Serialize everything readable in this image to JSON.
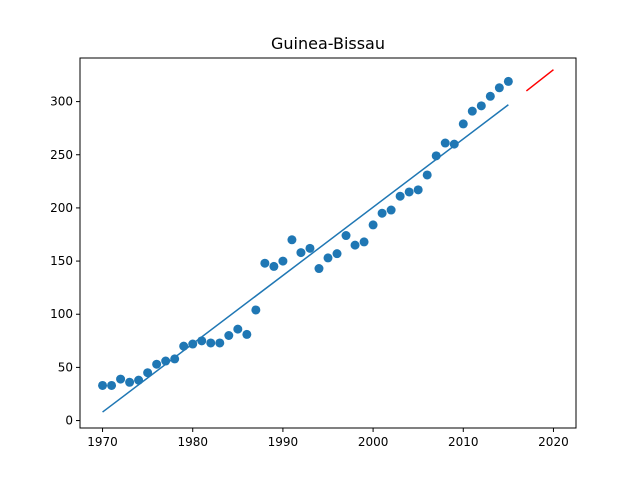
{
  "chart_data": {
    "type": "scatter",
    "title": "Guinea-Bissau",
    "xlabel": "",
    "ylabel": "",
    "xlim": [
      1967.5,
      2022.5
    ],
    "ylim": [
      -7,
      341
    ],
    "xticks": [
      1970,
      1980,
      1990,
      2000,
      2010,
      2020
    ],
    "yticks": [
      0,
      50,
      100,
      150,
      200,
      250,
      300
    ],
    "grid": false,
    "colors": {
      "points": "#1f77b4",
      "fit": "#1f77b4",
      "forecast": "#ff0000"
    },
    "series": [
      {
        "type": "scatter",
        "x": [
          1970,
          1971,
          1972,
          1973,
          1974,
          1975,
          1976,
          1977,
          1978,
          1979,
          1980,
          1981,
          1982,
          1983,
          1984,
          1985,
          1986,
          1987,
          1988,
          1989,
          1990,
          1991,
          1992,
          1993,
          1994,
          1995,
          1996,
          1997,
          1998,
          1999,
          2000,
          2001,
          2002,
          2003,
          2004,
          2005,
          2006,
          2007,
          2008,
          2009,
          2010,
          2011,
          2012,
          2013,
          2014,
          2015
        ],
        "y": [
          33,
          33,
          39,
          36,
          38,
          45,
          53,
          56,
          58,
          70,
          72,
          75,
          73,
          73,
          80,
          86,
          81,
          104,
          148,
          145,
          150,
          170,
          158,
          162,
          143,
          153,
          157,
          174,
          165,
          168,
          184,
          195,
          198,
          211,
          215,
          217,
          231,
          249,
          261,
          260,
          279,
          291,
          296,
          305,
          313,
          319
        ]
      },
      {
        "type": "line",
        "x": [
          1970,
          2015
        ],
        "y": [
          8,
          297
        ]
      },
      {
        "type": "line",
        "x": [
          2017,
          2020
        ],
        "y": [
          310,
          330
        ]
      }
    ]
  }
}
